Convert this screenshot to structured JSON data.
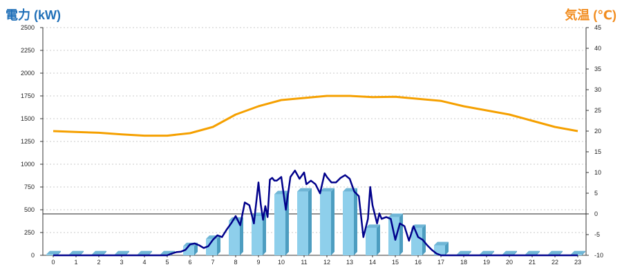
{
  "chart_data": {
    "type": "bar",
    "axes": {
      "y_left_label": "電力 (kW)",
      "y_right_label": "気温 (℃)",
      "y_left_ticks": [
        0,
        250,
        500,
        750,
        1000,
        1250,
        1500,
        1750,
        2000,
        2250,
        2500
      ],
      "y_right_ticks": [
        -10,
        -5,
        0,
        5,
        10,
        15,
        20,
        25,
        30,
        35,
        40,
        45
      ],
      "y_left_range": [
        0,
        2500
      ],
      "y_right_range": [
        -10,
        45
      ],
      "x_ticks": [
        "0",
        "1",
        "2",
        "3",
        "4",
        "5",
        "6",
        "7",
        "8",
        "9",
        "10",
        "11",
        "12",
        "13",
        "14",
        "15",
        "16",
        "17",
        "18",
        "19",
        "20",
        "21",
        "22",
        "23"
      ],
      "grid": true
    },
    "categories": [
      "0",
      "1",
      "2",
      "3",
      "4",
      "5",
      "6",
      "7",
      "8",
      "9",
      "10",
      "11",
      "12",
      "13",
      "14",
      "15",
      "16",
      "17",
      "18",
      "19",
      "20",
      "21",
      "22",
      "23"
    ],
    "bar_values": [
      10,
      10,
      10,
      10,
      10,
      10,
      100,
      180,
      380,
      430,
      670,
      700,
      700,
      700,
      300,
      420,
      300,
      110,
      10,
      10,
      10,
      10,
      10,
      10
    ],
    "line_power": {
      "x": [
        0,
        0.5,
        1,
        1.5,
        2,
        2.5,
        3,
        3.5,
        4,
        4.5,
        5,
        5.2,
        5.4,
        5.6,
        5.8,
        6,
        6.2,
        6.4,
        6.6,
        6.8,
        7,
        7.2,
        7.4,
        7.6,
        7.8,
        8,
        8.2,
        8.4,
        8.6,
        8.8,
        9,
        9.1,
        9.2,
        9.3,
        9.4,
        9.5,
        9.6,
        9.7,
        9.8,
        10,
        10.2,
        10.4,
        10.6,
        10.8,
        11,
        11.1,
        11.3,
        11.5,
        11.7,
        11.9,
        12,
        12.2,
        12.4,
        12.6,
        12.8,
        13,
        13.2,
        13.4,
        13.6,
        13.8,
        13.9,
        14,
        14.2,
        14.3,
        14.4,
        14.6,
        14.8,
        15,
        15.2,
        15.4,
        15.6,
        15.8,
        16,
        16.2,
        16.4,
        16.6,
        16.8,
        17,
        17.2,
        17.4,
        17.6,
        17.8,
        18,
        18.5,
        19,
        20,
        21,
        22,
        23
      ],
      "values": [
        0,
        0,
        0,
        0,
        0,
        0,
        0,
        0,
        0,
        0,
        0,
        20,
        35,
        40,
        60,
        120,
        130,
        110,
        80,
        100,
        170,
        220,
        200,
        280,
        350,
        430,
        330,
        580,
        550,
        350,
        800,
        560,
        390,
        540,
        420,
        830,
        850,
        820,
        820,
        860,
        500,
        860,
        930,
        840,
        910,
        780,
        820,
        780,
        680,
        900,
        860,
        800,
        800,
        850,
        880,
        840,
        700,
        650,
        200,
        400,
        750,
        550,
        350,
        460,
        400,
        420,
        400,
        170,
        350,
        320,
        160,
        320,
        200,
        170,
        110,
        60,
        20,
        0,
        0,
        0,
        0,
        0,
        0,
        0,
        0,
        0,
        0,
        0,
        0
      ],
      "color": "#00008b"
    },
    "line_temperature": {
      "x": [
        0,
        1,
        2,
        3,
        4,
        5,
        6,
        7,
        8,
        9,
        10,
        11,
        12,
        13,
        14,
        15,
        16,
        17,
        18,
        19,
        20,
        21,
        22,
        23
      ],
      "values": [
        20,
        19.8,
        19.6,
        19.2,
        18.9,
        18.9,
        19.5,
        21,
        24,
        26,
        27.5,
        28,
        28.5,
        28.5,
        28.2,
        28.3,
        27.8,
        27.3,
        26,
        25,
        24,
        22.5,
        21,
        20
      ],
      "color": "#f5a000"
    },
    "bar_color": "#8ecfeb",
    "zero_temperature_reference": 0
  }
}
